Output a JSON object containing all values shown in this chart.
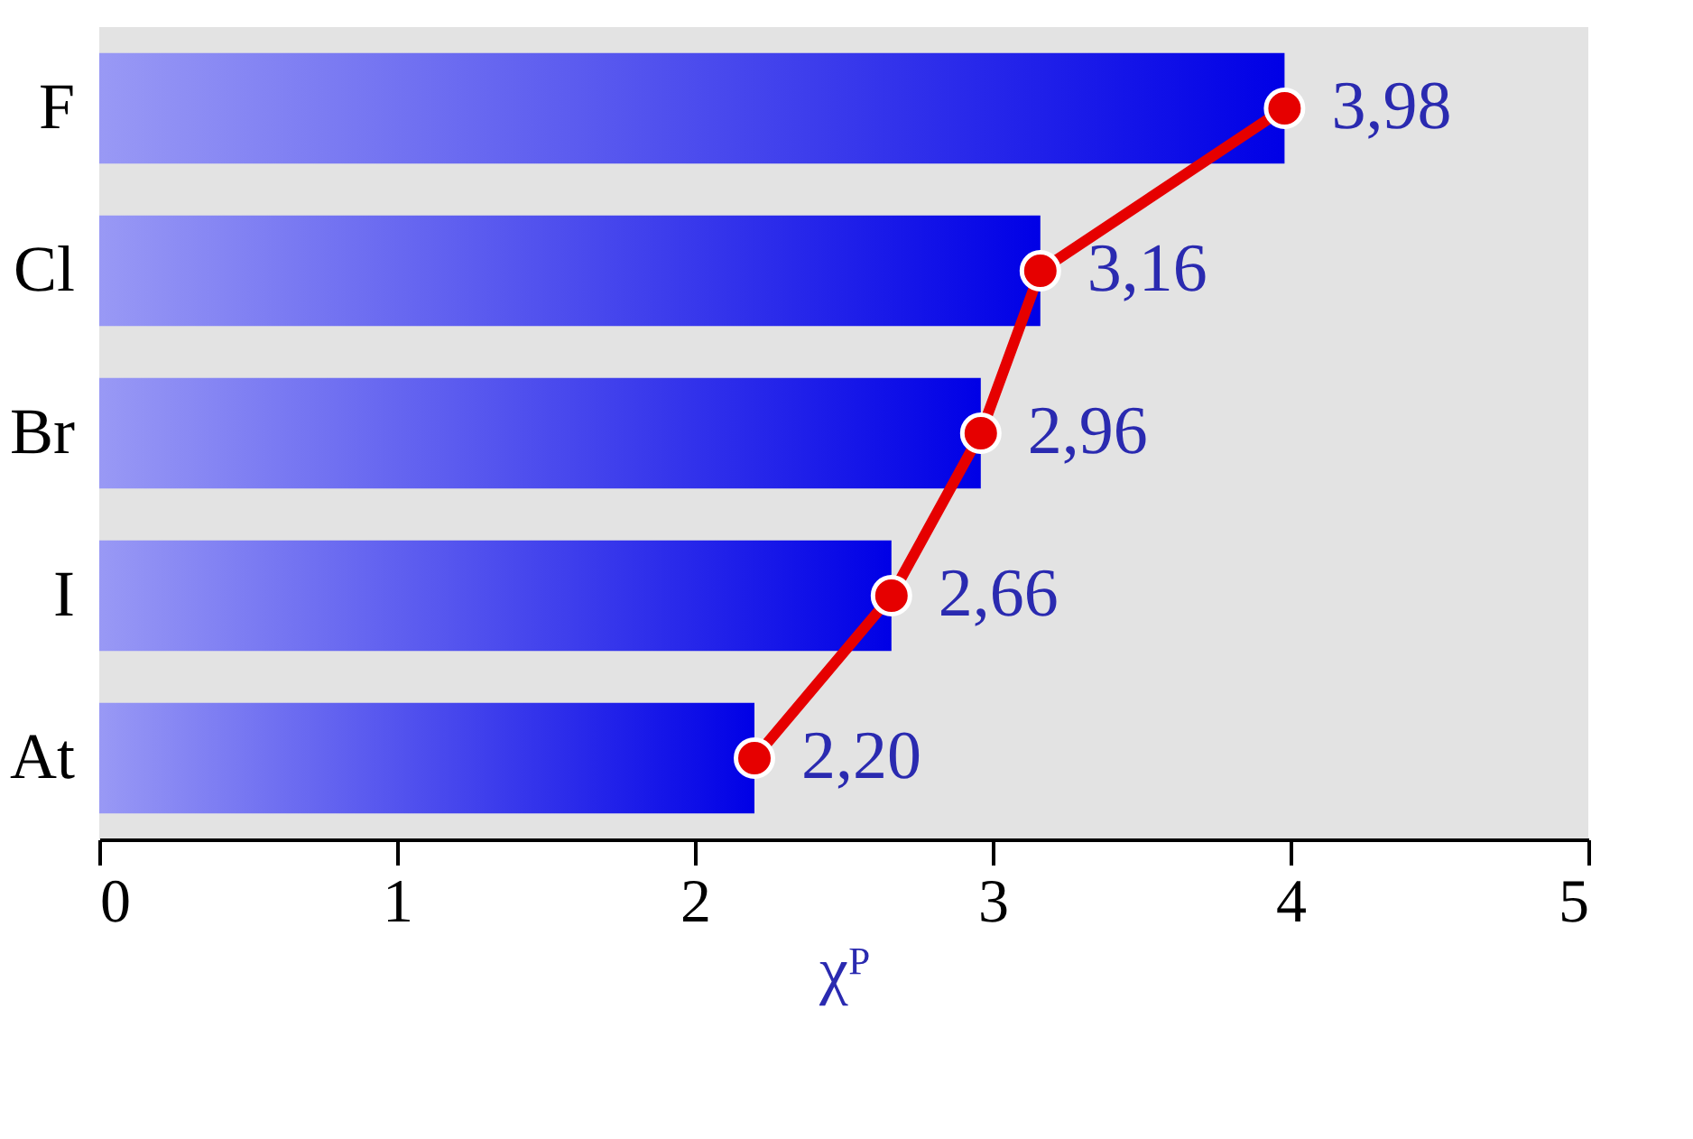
{
  "chart_data": {
    "type": "bar",
    "orientation": "horizontal",
    "xlabel": "χᴾ",
    "categories": [
      "F",
      "Cl",
      "Br",
      "I",
      "At"
    ],
    "series": [
      {
        "color": "#0000e6",
        "values": [
          3.98,
          3.16,
          2.96,
          2.66,
          2.2
        ]
      },
      {
        "type": "line",
        "color": "#e60000",
        "marker": "circle",
        "values": [
          3.98,
          3.16,
          2.96,
          2.66,
          2.2
        ],
        "value_labels": [
          "3,98",
          "3,16",
          "2,96",
          "2,66",
          "2,20"
        ]
      }
    ],
    "xlim": [
      0,
      5
    ],
    "xticks": [
      0,
      1,
      2,
      3,
      4,
      5
    ],
    "grid": false
  }
}
